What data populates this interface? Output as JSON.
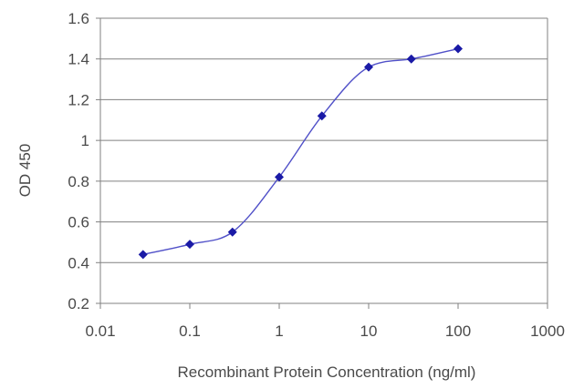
{
  "chart_data": {
    "type": "scatter",
    "title": "",
    "xlabel": "Recombinant Protein Concentration (ng/ml)",
    "ylabel": "OD 450",
    "xscale": "log",
    "xlim": [
      0.01,
      1000
    ],
    "ylim": [
      0.2,
      1.6
    ],
    "x_ticks": [
      0.01,
      0.1,
      1,
      10,
      100,
      1000
    ],
    "x_tick_labels": [
      "0.01",
      "0.1",
      "1",
      "10",
      "100",
      "1000"
    ],
    "y_ticks": [
      0.2,
      0.4,
      0.6,
      0.8,
      1.0,
      1.2,
      1.4,
      1.6
    ],
    "y_tick_labels": [
      "0.2",
      "0.4",
      "0.6",
      "0.8",
      "1",
      "1.2",
      "1.4",
      "1.6"
    ],
    "grid": "horizontal",
    "legend": "none",
    "series": [
      {
        "x": [
          0.03,
          0.1,
          0.3,
          1,
          3,
          10,
          30,
          100
        ],
        "y": [
          0.44,
          0.49,
          0.55,
          0.82,
          1.12,
          1.36,
          1.4,
          1.45
        ],
        "fit_curve": true
      }
    ],
    "colors": {
      "series": "#1a1aa6",
      "curve": "#5050c8",
      "grid": "#808080",
      "axis": "#808080"
    }
  }
}
